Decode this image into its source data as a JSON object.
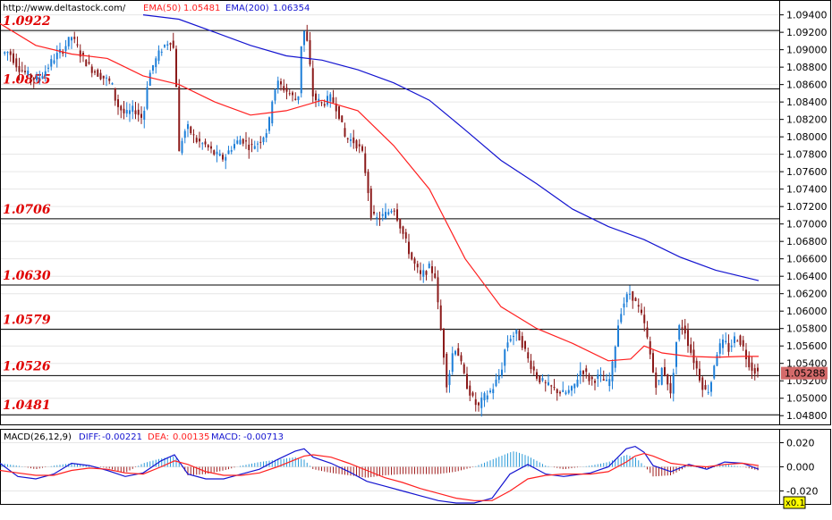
{
  "header": {
    "url": "http://www.deltastock.com/",
    "ema50_label": "EMA(50)",
    "ema50_value": "1.05481",
    "ema200_label": "EMA(200)",
    "ema200_value": "1.06354"
  },
  "macd_header": {
    "name": "MACD(26,12,9)",
    "diff_label": "DIFF:",
    "diff_value": "-0.00221",
    "dea_label": "DEA:",
    "dea_value": "0.00135",
    "macd_label": "MACD:",
    "macd_value": "-0.00713"
  },
  "scale_label": "x0.1",
  "colors": {
    "bull": "#1e7fd8",
    "bear": "#8b1a1a",
    "ema50": "#ff2020",
    "ema200": "#1414d0",
    "level_text": "#e00000",
    "macd_pos": "#2a9ad8",
    "macd_neg": "#a02020",
    "diff_line": "#1414d0",
    "dea_line": "#ff2020",
    "price_tag": "#d46a6a"
  },
  "chart_data": [
    {
      "type": "candlestick",
      "ylim": [
        1.0471,
        1.0955
      ],
      "y_ticks": [
        "1.09400",
        "1.09200",
        "1.09000",
        "1.08800",
        "1.08600",
        "1.08400",
        "1.08200",
        "1.08000",
        "1.07800",
        "1.07600",
        "1.07400",
        "1.07200",
        "1.07000",
        "1.06800",
        "1.06600",
        "1.06400",
        "1.06200",
        "1.06000",
        "1.05800",
        "1.05600",
        "1.05400",
        "1.05200",
        "1.05000",
        "1.04800"
      ],
      "current_price": "1.05288",
      "levels": [
        {
          "value": 1.0922,
          "label": "1.0922"
        },
        {
          "value": 1.0855,
          "label": "1.0855"
        },
        {
          "value": 1.0706,
          "label": "1.0706"
        },
        {
          "value": 1.063,
          "label": "1.0630"
        },
        {
          "value": 1.0579,
          "label": "1.0579"
        },
        {
          "value": 1.0526,
          "label": "1.0526"
        },
        {
          "value": 1.0481,
          "label": "1.0481"
        }
      ],
      "close_path": [
        [
          0,
          1.0895
        ],
        [
          10,
          1.0898
        ],
        [
          20,
          1.088
        ],
        [
          30,
          1.0872
        ],
        [
          40,
          1.0865
        ],
        [
          50,
          1.0875
        ],
        [
          60,
          1.089
        ],
        [
          70,
          1.09
        ],
        [
          80,
          1.0915
        ],
        [
          90,
          1.0895
        ],
        [
          100,
          1.088
        ],
        [
          110,
          1.0872
        ],
        [
          120,
          1.0865
        ],
        [
          125,
          1.086
        ],
        [
          130,
          1.0838
        ],
        [
          140,
          1.0825
        ],
        [
          150,
          1.0832
        ],
        [
          160,
          1.082
        ],
        [
          165,
          1.0865
        ],
        [
          170,
          1.088
        ],
        [
          180,
          1.09
        ],
        [
          190,
          1.0912
        ],
        [
          195,
          1.0898
        ],
        [
          197,
          1.086
        ],
        [
          200,
          1.078
        ],
        [
          205,
          1.0805
        ],
        [
          210,
          1.081
        ],
        [
          220,
          1.0795
        ],
        [
          230,
          1.079
        ],
        [
          240,
          1.078
        ],
        [
          250,
          1.0775
        ],
        [
          260,
          1.079
        ],
        [
          270,
          1.0798
        ],
        [
          280,
          1.0788
        ],
        [
          290,
          1.0795
        ],
        [
          300,
          1.081
        ],
        [
          305,
          1.085
        ],
        [
          310,
          1.0862
        ],
        [
          318,
          1.0855
        ],
        [
          325,
          1.0848
        ],
        [
          333,
          1.084
        ],
        [
          337,
          1.091
        ],
        [
          341,
          1.0925
        ],
        [
          345,
          1.0895
        ],
        [
          350,
          1.0845
        ],
        [
          360,
          1.0838
        ],
        [
          370,
          1.0845
        ],
        [
          378,
          1.083
        ],
        [
          385,
          1.08
        ],
        [
          395,
          1.0795
        ],
        [
          400,
          1.079
        ],
        [
          405,
          1.078
        ],
        [
          410,
          1.075
        ],
        [
          415,
          1.071
        ],
        [
          420,
          1.0705
        ],
        [
          430,
          1.071
        ],
        [
          440,
          1.072
        ],
        [
          450,
          1.069
        ],
        [
          460,
          1.066
        ],
        [
          470,
          1.064
        ],
        [
          480,
          1.065
        ],
        [
          487,
          1.064
        ],
        [
          490,
          1.06
        ],
        [
          495,
          1.056
        ],
        [
          500,
          1.051
        ],
        [
          505,
          1.055
        ],
        [
          510,
          1.056
        ],
        [
          520,
          1.052
        ],
        [
          530,
          1.0495
        ],
        [
          535,
          1.049
        ],
        [
          540,
          1.05
        ],
        [
          550,
          1.051
        ],
        [
          560,
          1.053
        ],
        [
          565,
          1.056
        ],
        [
          570,
          1.057
        ],
        [
          578,
          1.0575
        ],
        [
          585,
          1.056
        ],
        [
          590,
          1.0545
        ],
        [
          600,
          1.0525
        ],
        [
          610,
          1.0515
        ],
        [
          620,
          1.051
        ],
        [
          630,
          1.0505
        ],
        [
          640,
          1.051
        ],
        [
          650,
          1.0535
        ],
        [
          660,
          1.052
        ],
        [
          670,
          1.0525
        ],
        [
          680,
          1.0515
        ],
        [
          685,
          1.054
        ],
        [
          690,
          1.058
        ],
        [
          695,
          1.0605
        ],
        [
          700,
          1.0615
        ],
        [
          705,
          1.0622
        ],
        [
          710,
          1.061
        ],
        [
          715,
          1.06
        ],
        [
          720,
          1.0585
        ],
        [
          725,
          1.056
        ],
        [
          730,
          1.053
        ],
        [
          735,
          1.051
        ],
        [
          740,
          1.0535
        ],
        [
          745,
          1.0525
        ],
        [
          750,
          1.05
        ],
        [
          755,
          1.056
        ],
        [
          760,
          1.0585
        ],
        [
          765,
          1.058
        ],
        [
          770,
          1.056
        ],
        [
          775,
          1.0545
        ],
        [
          780,
          1.053
        ],
        [
          785,
          1.0515
        ],
        [
          790,
          1.0505
        ],
        [
          795,
          1.052
        ],
        [
          800,
          1.055
        ],
        [
          805,
          1.056
        ],
        [
          810,
          1.0565
        ],
        [
          815,
          1.0555
        ],
        [
          820,
          1.0568
        ],
        [
          825,
          1.057
        ],
        [
          830,
          1.056
        ],
        [
          835,
          1.0545
        ],
        [
          840,
          1.0535
        ],
        [
          848,
          1.0529
        ]
      ],
      "ema50": [
        [
          0,
          1.093
        ],
        [
          40,
          1.0905
        ],
        [
          80,
          1.0895
        ],
        [
          120,
          1.089
        ],
        [
          160,
          1.087
        ],
        [
          200,
          1.086
        ],
        [
          240,
          1.084
        ],
        [
          280,
          1.0825
        ],
        [
          320,
          1.083
        ],
        [
          360,
          1.0842
        ],
        [
          400,
          1.083
        ],
        [
          440,
          1.079
        ],
        [
          480,
          1.074
        ],
        [
          520,
          1.066
        ],
        [
          560,
          1.0605
        ],
        [
          600,
          1.058
        ],
        [
          640,
          1.0563
        ],
        [
          680,
          1.0543
        ],
        [
          705,
          1.0545
        ],
        [
          720,
          1.056
        ],
        [
          740,
          1.0552
        ],
        [
          770,
          1.0548
        ],
        [
          800,
          1.0547
        ],
        [
          830,
          1.0548
        ],
        [
          848,
          1.0548
        ]
      ],
      "ema200": [
        [
          160,
          1.094
        ],
        [
          200,
          1.0935
        ],
        [
          240,
          1.092
        ],
        [
          280,
          1.0905
        ],
        [
          320,
          1.0893
        ],
        [
          360,
          1.0888
        ],
        [
          400,
          1.0877
        ],
        [
          440,
          1.0862
        ],
        [
          480,
          1.0842
        ],
        [
          520,
          1.0808
        ],
        [
          560,
          1.0773
        ],
        [
          600,
          1.0746
        ],
        [
          640,
          1.0717
        ],
        [
          680,
          1.0697
        ],
        [
          720,
          1.0682
        ],
        [
          760,
          1.0662
        ],
        [
          800,
          1.0647
        ],
        [
          848,
          1.0635
        ]
      ]
    },
    {
      "type": "macd",
      "ylim": [
        -0.03,
        0.03
      ],
      "y_ticks": [
        "0.020",
        "0.000",
        "-0.020"
      ],
      "diff": [
        [
          0,
          0.003
        ],
        [
          20,
          -0.008
        ],
        [
          40,
          -0.01
        ],
        [
          60,
          -0.006
        ],
        [
          80,
          0.003
        ],
        [
          100,
          0.001
        ],
        [
          120,
          -0.003
        ],
        [
          140,
          -0.008
        ],
        [
          160,
          -0.005
        ],
        [
          180,
          0.005
        ],
        [
          195,
          0.01
        ],
        [
          210,
          -0.006
        ],
        [
          230,
          -0.01
        ],
        [
          250,
          -0.01
        ],
        [
          270,
          -0.006
        ],
        [
          290,
          -0.002
        ],
        [
          310,
          0.006
        ],
        [
          330,
          0.013
        ],
        [
          340,
          0.015
        ],
        [
          350,
          0.008
        ],
        [
          370,
          0.003
        ],
        [
          390,
          -0.004
        ],
        [
          410,
          -0.012
        ],
        [
          430,
          -0.016
        ],
        [
          450,
          -0.02
        ],
        [
          470,
          -0.024
        ],
        [
          490,
          -0.028
        ],
        [
          510,
          -0.03
        ],
        [
          530,
          -0.03
        ],
        [
          550,
          -0.026
        ],
        [
          570,
          -0.006
        ],
        [
          590,
          0.002
        ],
        [
          610,
          -0.006
        ],
        [
          630,
          -0.008
        ],
        [
          660,
          -0.005
        ],
        [
          680,
          0.0
        ],
        [
          700,
          0.015
        ],
        [
          710,
          0.017
        ],
        [
          720,
          0.012
        ],
        [
          730,
          0.001
        ],
        [
          750,
          -0.004
        ],
        [
          770,
          0.002
        ],
        [
          790,
          -0.002
        ],
        [
          810,
          0.004
        ],
        [
          830,
          0.003
        ],
        [
          848,
          -0.002
        ]
      ],
      "dea": [
        [
          0,
          -0.003
        ],
        [
          20,
          -0.005
        ],
        [
          40,
          -0.007
        ],
        [
          60,
          -0.007
        ],
        [
          80,
          -0.003
        ],
        [
          100,
          -0.001
        ],
        [
          120,
          -0.002
        ],
        [
          140,
          -0.005
        ],
        [
          160,
          -0.006
        ],
        [
          180,
          0.0
        ],
        [
          195,
          0.005
        ],
        [
          210,
          0.002
        ],
        [
          230,
          -0.004
        ],
        [
          250,
          -0.007
        ],
        [
          270,
          -0.007
        ],
        [
          290,
          -0.005
        ],
        [
          310,
          0.0
        ],
        [
          330,
          0.006
        ],
        [
          340,
          0.009
        ],
        [
          350,
          0.01
        ],
        [
          370,
          0.008
        ],
        [
          390,
          0.003
        ],
        [
          410,
          -0.003
        ],
        [
          430,
          -0.009
        ],
        [
          450,
          -0.013
        ],
        [
          470,
          -0.018
        ],
        [
          490,
          -0.022
        ],
        [
          510,
          -0.026
        ],
        [
          530,
          -0.028
        ],
        [
          550,
          -0.028
        ],
        [
          570,
          -0.02
        ],
        [
          590,
          -0.01
        ],
        [
          610,
          -0.007
        ],
        [
          630,
          -0.006
        ],
        [
          660,
          -0.006
        ],
        [
          680,
          -0.004
        ],
        [
          700,
          0.004
        ],
        [
          710,
          0.009
        ],
        [
          720,
          0.011
        ],
        [
          730,
          0.009
        ],
        [
          750,
          0.003
        ],
        [
          770,
          0.001
        ],
        [
          790,
          0.0
        ],
        [
          810,
          0.002
        ],
        [
          830,
          0.003
        ],
        [
          848,
          0.001
        ]
      ],
      "histogram": [
        [
          0,
          0.003
        ],
        [
          20,
          0.001
        ],
        [
          40,
          -0.002
        ],
        [
          60,
          0.001
        ],
        [
          80,
          0.003
        ],
        [
          100,
          0.001
        ],
        [
          120,
          -0.001
        ],
        [
          140,
          -0.005
        ],
        [
          160,
          0.003
        ],
        [
          180,
          0.007
        ],
        [
          195,
          0.009
        ],
        [
          210,
          -0.007
        ],
        [
          230,
          -0.006
        ],
        [
          250,
          -0.003
        ],
        [
          270,
          0.001
        ],
        [
          290,
          0.004
        ],
        [
          310,
          0.006
        ],
        [
          330,
          0.008
        ],
        [
          340,
          0.006
        ],
        [
          350,
          -0.002
        ],
        [
          370,
          -0.005
        ],
        [
          390,
          -0.007
        ],
        [
          410,
          -0.009
        ],
        [
          430,
          -0.007
        ],
        [
          450,
          -0.006
        ],
        [
          470,
          -0.006
        ],
        [
          490,
          -0.006
        ],
        [
          510,
          -0.004
        ],
        [
          530,
          0.0
        ],
        [
          550,
          0.006
        ],
        [
          570,
          0.012
        ],
        [
          575,
          0.013
        ],
        [
          590,
          0.009
        ],
        [
          610,
          0.001
        ],
        [
          630,
          -0.002
        ],
        [
          660,
          0.001
        ],
        [
          680,
          0.004
        ],
        [
          700,
          0.01
        ],
        [
          710,
          0.008
        ],
        [
          720,
          0.001
        ],
        [
          730,
          -0.008
        ],
        [
          750,
          -0.007
        ],
        [
          770,
          0.001
        ],
        [
          790,
          -0.002
        ],
        [
          810,
          0.002
        ],
        [
          830,
          0.0
        ],
        [
          848,
          -0.003
        ]
      ]
    }
  ]
}
